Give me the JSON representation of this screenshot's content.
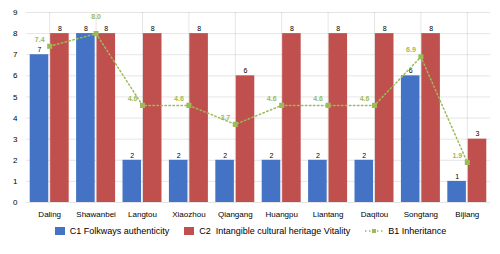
{
  "chart_data": {
    "type": "bar",
    "categories": [
      "Daling",
      "Shawanbei",
      "Langtou",
      "Xiaozhou",
      "Qiangang",
      "Huangpu",
      "Liantang",
      "Daqitou",
      "Songtang",
      "Bijiang"
    ],
    "series": [
      {
        "name": "C1 Folkways authenticity",
        "type": "bar",
        "color": "#4472C4",
        "values": [
          7,
          8,
          2,
          2,
          2,
          2,
          2,
          2,
          6,
          1
        ]
      },
      {
        "name": "C2  Intangible cultural heritage Vitality",
        "type": "bar",
        "color": "#C0504D",
        "values": [
          8,
          8,
          8,
          8,
          6,
          8,
          8,
          8,
          8,
          3
        ]
      },
      {
        "name": "B1 Inheritance",
        "type": "line",
        "color": "#9BBB59",
        "marker": "square",
        "line_style": "dotted",
        "values": [
          7.4,
          8.0,
          4.6,
          4.6,
          3.7,
          4.6,
          4.6,
          4.6,
          6.9,
          1.9
        ],
        "value_labels": [
          "7.4",
          "8.0",
          "4.6",
          "4.6",
          "3.7",
          "4.6",
          "4.6",
          "4.6",
          "6.9",
          "1.9"
        ]
      }
    ],
    "ylim": [
      0,
      9
    ],
    "yticks": [
      0,
      1,
      2,
      3,
      4,
      5,
      6,
      7,
      8,
      9
    ],
    "grid": true,
    "data_labels": true,
    "legend": "bottom"
  }
}
